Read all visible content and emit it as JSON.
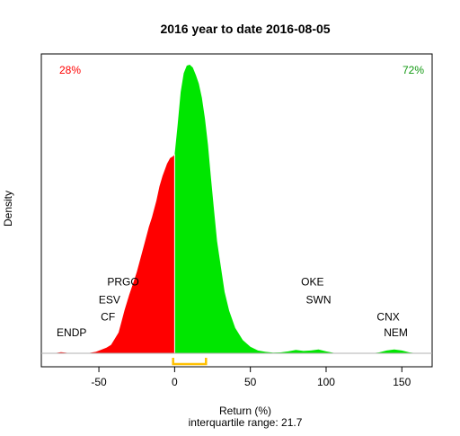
{
  "chart_data": {
    "type": "area",
    "title": "2016  year to date 2016-08-05",
    "xlabel": "Return (%)",
    "ylabel": "Density",
    "subtitle": "interquartile range: 21.7",
    "xlim": [
      -88,
      170
    ],
    "x_ticks": [
      -50,
      0,
      50,
      100,
      150
    ],
    "split_at": 0,
    "negative_share": "28%",
    "positive_share": "72%",
    "colors": {
      "negative": "#ff0000",
      "positive": "#00e600",
      "iqr": "#ffc000",
      "axis": "#000000",
      "baseline": "#b0b0b0"
    },
    "density_curve": {
      "x": [
        -88,
        -80,
        -78,
        -75,
        -72,
        -70,
        -65,
        -58,
        -52,
        -48,
        -45,
        -42,
        -40,
        -37,
        -35,
        -33,
        -30,
        -27,
        -25,
        -22,
        -20,
        -17,
        -15,
        -12,
        -10,
        -8,
        -5,
        -3,
        -1,
        0,
        2,
        4,
        6,
        8,
        10,
        12,
        14,
        16,
        18,
        20,
        22,
        24,
        26,
        28,
        30,
        33,
        36,
        40,
        45,
        50,
        55,
        60,
        65,
        70,
        75,
        80,
        85,
        90,
        95,
        100,
        105,
        110,
        120,
        130,
        135,
        140,
        145,
        150,
        155,
        160,
        170
      ],
      "y": [
        0,
        0,
        0.005,
        0.012,
        0.008,
        0.002,
        0,
        0,
        0.015,
        0.04,
        0.06,
        0.09,
        0.14,
        0.22,
        0.34,
        0.46,
        0.62,
        0.76,
        0.86,
        1.04,
        1.16,
        1.34,
        1.44,
        1.62,
        1.77,
        1.88,
        2.01,
        2.07,
        2.09,
        2.11,
        2.42,
        2.77,
        2.97,
        3.05,
        3.06,
        3.03,
        2.95,
        2.86,
        2.71,
        2.49,
        2.21,
        1.86,
        1.52,
        1.19,
        0.97,
        0.65,
        0.45,
        0.27,
        0.14,
        0.07,
        0.03,
        0.015,
        0.008,
        0.01,
        0.02,
        0.035,
        0.025,
        0.03,
        0.04,
        0.02,
        0.005,
        0,
        0,
        0,
        0.01,
        0.03,
        0.04,
        0.03,
        0.01,
        0,
        0
      ]
    },
    "iqr": {
      "q1": -1,
      "q3": 20.7
    },
    "stock_labels": [
      {
        "name": "ENDP",
        "x": -68,
        "y": 0.18
      },
      {
        "name": "CF",
        "x": -44,
        "y": 0.35
      },
      {
        "name": "ESV",
        "x": -43,
        "y": 0.53
      },
      {
        "name": "PRGO",
        "x": -34,
        "y": 0.72
      },
      {
        "name": "OKE",
        "x": 91,
        "y": 0.72
      },
      {
        "name": "SWN",
        "x": 95,
        "y": 0.53
      },
      {
        "name": "CNX",
        "x": 141,
        "y": 0.35
      },
      {
        "name": "NEM",
        "x": 146,
        "y": 0.18
      }
    ]
  }
}
